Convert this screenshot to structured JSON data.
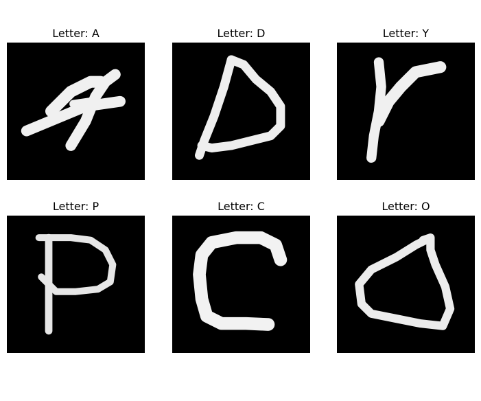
{
  "title_prefix": "Letter: ",
  "panels": [
    {
      "letter": "A",
      "title": "Letter: A"
    },
    {
      "letter": "D",
      "title": "Letter: D"
    },
    {
      "letter": "Y",
      "title": "Letter: Y"
    },
    {
      "letter": "P",
      "title": "Letter: P"
    },
    {
      "letter": "C",
      "title": "Letter: C"
    },
    {
      "letter": "O",
      "title": "Letter: O"
    }
  ],
  "colors": {
    "background": "#ffffff",
    "image_background": "#000000",
    "stroke": "#f2f2f2",
    "text": "#000000"
  }
}
